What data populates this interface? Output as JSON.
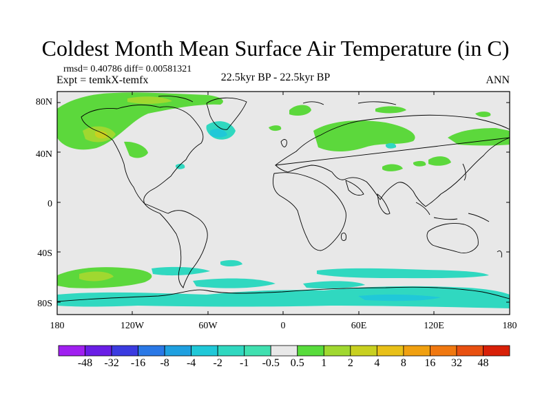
{
  "title": "Coldest Month Mean Surface Air Temperature (in C)",
  "stats_line": "rmsd= 0.40786 diff= 0.00581321",
  "expt_line": "Expt = temkX-temfx",
  "period_label": "22.5kyr BP - 22.5kyr BP",
  "season_label": "ANN",
  "lat_ticks": [
    "80N",
    "40N",
    "0",
    "40S",
    "80S"
  ],
  "lon_ticks": [
    "180",
    "120W",
    "60W",
    "0",
    "60E",
    "120E",
    "180"
  ],
  "colorbar": {
    "labels": [
      "-48",
      "-32",
      "-16",
      "-8",
      "-4",
      "-2",
      "-1",
      "-0.5",
      "0.5",
      "1",
      "2",
      "4",
      "8",
      "16",
      "32",
      "48"
    ],
    "colors": [
      "#a020f0",
      "#6a1ee6",
      "#3b3be0",
      "#2a78e6",
      "#1fa0e0",
      "#20c8d8",
      "#30d8c0",
      "#40e0b0",
      "#e8e8e8",
      "#58dc3c",
      "#a0d830",
      "#c8d020",
      "#e8c018",
      "#f0a010",
      "#f07810",
      "#e85010",
      "#d82008"
    ]
  },
  "map": {
    "background_color": "#e8e8e8",
    "coast_color": "#000000"
  }
}
